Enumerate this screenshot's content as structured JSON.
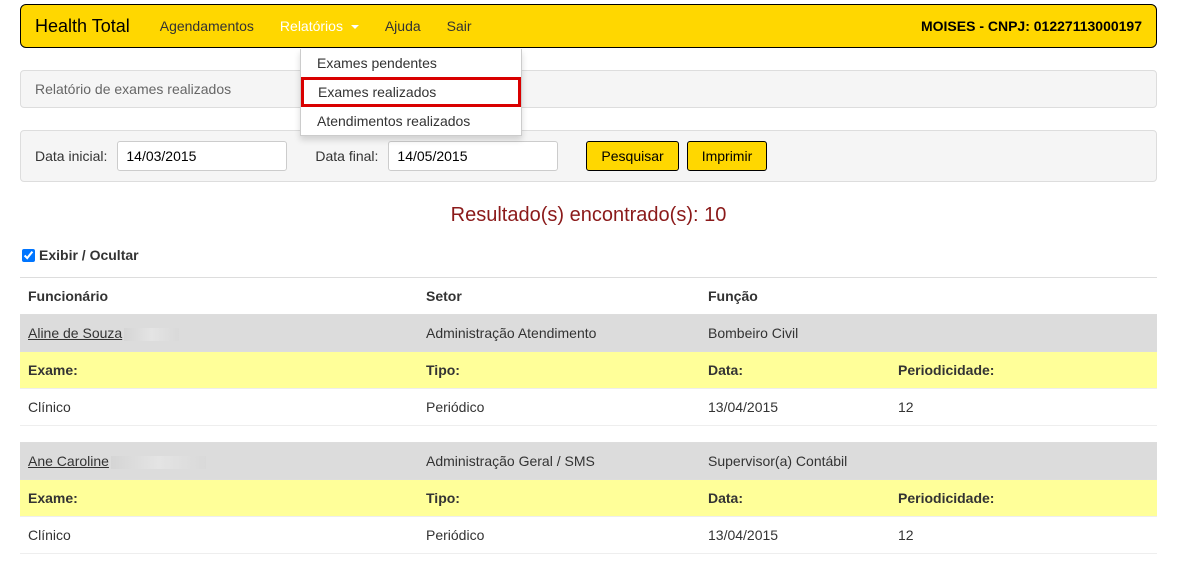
{
  "navbar": {
    "brand": "Health Total",
    "items": [
      {
        "label": "Agendamentos",
        "active": false
      },
      {
        "label": "Relatórios",
        "active": true
      },
      {
        "label": "Ajuda",
        "active": false
      },
      {
        "label": "Sair",
        "active": false
      }
    ],
    "dropdown": [
      {
        "label": "Exames pendentes",
        "highlight": false
      },
      {
        "label": "Exames realizados",
        "highlight": true
      },
      {
        "label": "Atendimentos realizados",
        "highlight": false
      }
    ],
    "user_info": "MOISES - CNPJ: 01227113000197"
  },
  "panel_title": "Relatório de exames realizados",
  "filters": {
    "start_label": "Data inicial:",
    "start_value": "14/03/2015",
    "end_label": "Data final:",
    "end_value": "14/05/2015",
    "search_btn": "Pesquisar",
    "print_btn": "Imprimir"
  },
  "results_title": "Resultado(s) encontrado(s): 10",
  "toggle_label": "Exibir / Ocultar",
  "toggle_checked": true,
  "table": {
    "main_headers": {
      "employee": "Funcionário",
      "sector": "Setor",
      "role": "Função"
    },
    "detail_headers": {
      "exam": "Exame:",
      "type": "Tipo:",
      "date": "Data:",
      "period": "Periodicidade:"
    },
    "groups": [
      {
        "employee_name": "Aline de Souza",
        "sector": "Administração Atendimento",
        "role": "Bombeiro Civil",
        "exam": {
          "name": "Clínico",
          "type": "Periódico",
          "date": "13/04/2015",
          "period": "12"
        }
      },
      {
        "employee_name": "Ane Caroline",
        "sector": "Administração Geral / SMS",
        "role": "Supervisor(a) Contábil",
        "exam": {
          "name": "Clínico",
          "type": "Periódico",
          "date": "13/04/2015",
          "period": "12"
        }
      }
    ]
  },
  "colors": {
    "navbar_bg": "#ffd700",
    "highlight_row": "#ffff99",
    "emp_row": "#dcdcdc",
    "results_title": "#8b1a1a",
    "dropdown_border_highlight": "#d90000"
  }
}
